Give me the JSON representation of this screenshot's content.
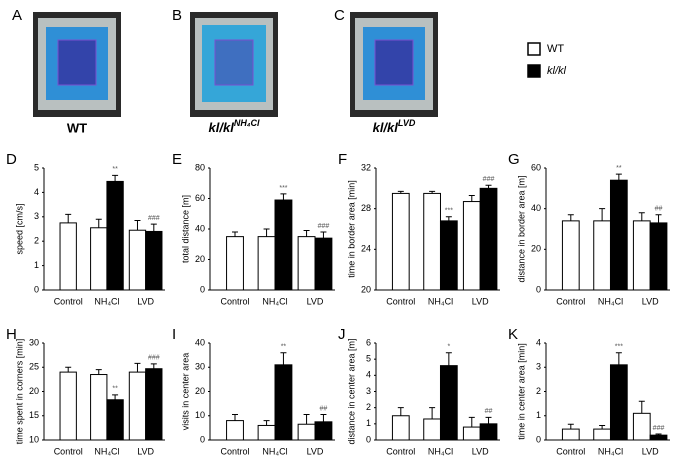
{
  "figure": {
    "images": [
      {
        "letter": "A",
        "label": "WT"
      },
      {
        "letter": "B",
        "label": "kl/kl",
        "superscript": "NH₄Cl"
      },
      {
        "letter": "C",
        "label": "kl/kl",
        "superscript": "LVD"
      }
    ],
    "legend": [
      {
        "name": "WT",
        "color": "#ffffff"
      },
      {
        "name": "kl/kl",
        "color": "#000000"
      }
    ]
  },
  "chart_data": [
    {
      "type": "bar",
      "panel": "D",
      "y_label": "speed [cm/s]",
      "categories": [
        "Control",
        "NH₄Cl",
        "LVD"
      ],
      "ylim": [
        0,
        5
      ],
      "yticks": [
        0,
        1,
        2,
        3,
        4,
        5
      ],
      "series": [
        {
          "values": [
            2.75,
            2.55,
            2.45
          ],
          "errors": [
            0.35,
            0.35,
            0.4
          ]
        },
        {
          "values": [
            null,
            4.45,
            2.4
          ],
          "errors": [
            null,
            0.25,
            0.3
          ],
          "significance": [
            null,
            "**",
            "###"
          ]
        }
      ]
    },
    {
      "type": "bar",
      "panel": "E",
      "y_label": "total distance [m]",
      "categories": [
        "Control",
        "NH₄Cl",
        "LVD"
      ],
      "ylim": [
        0,
        80
      ],
      "yticks": [
        0,
        20,
        40,
        60,
        80
      ],
      "series": [
        {
          "values": [
            35,
            35,
            35
          ],
          "errors": [
            3,
            5,
            4
          ]
        },
        {
          "values": [
            null,
            59,
            34
          ],
          "errors": [
            null,
            4,
            4
          ],
          "significance": [
            null,
            "***",
            "###"
          ]
        }
      ]
    },
    {
      "type": "bar",
      "panel": "F",
      "y_label": "time in border area [min]",
      "categories": [
        "Control",
        "NH₄Cl",
        "LVD"
      ],
      "ylim": [
        20,
        32
      ],
      "yticks": [
        20,
        24,
        28,
        32
      ],
      "series": [
        {
          "values": [
            29.5,
            29.5,
            28.7
          ],
          "errors": [
            0.2,
            0.2,
            0.6
          ]
        },
        {
          "values": [
            null,
            26.8,
            30
          ],
          "errors": [
            null,
            0.4,
            0.3
          ],
          "significance": [
            null,
            "***",
            "###"
          ]
        }
      ]
    },
    {
      "type": "bar",
      "panel": "G",
      "y_label": "distance in border area [m]",
      "categories": [
        "Control",
        "NH₄Cl",
        "LVD"
      ],
      "ylim": [
        0,
        60
      ],
      "yticks": [
        0,
        20,
        40,
        60
      ],
      "series": [
        {
          "values": [
            34,
            34,
            34
          ],
          "errors": [
            3,
            6,
            4
          ]
        },
        {
          "values": [
            null,
            54,
            33
          ],
          "errors": [
            null,
            3,
            4
          ],
          "significance": [
            null,
            "**",
            "##"
          ]
        }
      ]
    },
    {
      "type": "bar",
      "panel": "H",
      "y_label": "time spent in corners [min]",
      "categories": [
        "Control",
        "NH₄Cl",
        "LVD"
      ],
      "ylim": [
        10,
        30
      ],
      "yticks": [
        10,
        15,
        20,
        25,
        30
      ],
      "series": [
        {
          "values": [
            24,
            23.5,
            24
          ],
          "errors": [
            1,
            1,
            1.8
          ]
        },
        {
          "values": [
            null,
            18.3,
            24.7
          ],
          "errors": [
            null,
            1,
            1
          ],
          "significance": [
            null,
            "**",
            "###"
          ]
        }
      ]
    },
    {
      "type": "bar",
      "panel": "I",
      "y_label": "visits in center area",
      "categories": [
        "Control",
        "NH₄Cl",
        "LVD"
      ],
      "ylim": [
        0,
        40
      ],
      "yticks": [
        0,
        10,
        20,
        30,
        40
      ],
      "series": [
        {
          "values": [
            8,
            6,
            6.5
          ],
          "errors": [
            2.5,
            2,
            4
          ]
        },
        {
          "values": [
            null,
            31,
            7.5
          ],
          "errors": [
            null,
            5,
            3
          ],
          "significance": [
            null,
            "**",
            "##"
          ]
        }
      ]
    },
    {
      "type": "bar",
      "panel": "J",
      "y_label": "distance in center area [m]",
      "categories": [
        "Control",
        "NH₄Cl",
        "LVD"
      ],
      "ylim": [
        0,
        6
      ],
      "yticks": [
        0,
        1,
        2,
        3,
        4,
        5,
        6
      ],
      "series": [
        {
          "values": [
            1.5,
            1.3,
            0.8
          ],
          "errors": [
            0.5,
            0.7,
            0.6
          ]
        },
        {
          "values": [
            null,
            4.6,
            1.0
          ],
          "errors": [
            null,
            0.8,
            0.4
          ],
          "significance": [
            null,
            "*",
            "##"
          ]
        }
      ]
    },
    {
      "type": "bar",
      "panel": "K",
      "y_label": "time in center area [min]",
      "categories": [
        "Control",
        "NH₄Cl",
        "LVD"
      ],
      "ylim": [
        0,
        4
      ],
      "yticks": [
        0,
        1,
        2,
        3,
        4
      ],
      "series": [
        {
          "values": [
            0.45,
            0.45,
            1.1
          ],
          "errors": [
            0.2,
            0.15,
            0.5
          ]
        },
        {
          "values": [
            null,
            3.1,
            0.2
          ],
          "errors": [
            null,
            0.5,
            0.05
          ],
          "significance": [
            null,
            "***",
            "###"
          ]
        }
      ]
    }
  ]
}
